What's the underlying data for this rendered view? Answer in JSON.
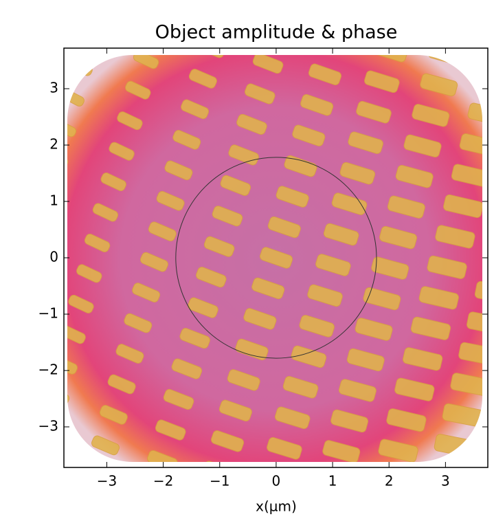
{
  "chart_data": {
    "type": "image",
    "title": "Object amplitude & phase",
    "x_label": "x(µm)",
    "xlim": [
      -3.76,
      3.75
    ],
    "ylim": [
      -3.72,
      3.72
    ],
    "xticks": [
      {
        "value": -3,
        "label": "−3"
      },
      {
        "value": -2,
        "label": "−2"
      },
      {
        "value": -1,
        "label": "−1"
      },
      0,
      1,
      2,
      3
    ],
    "yticks": [
      {
        "value": -3,
        "label": "−3"
      },
      {
        "value": -2,
        "label": "−2"
      },
      {
        "value": -1,
        "label": "−1"
      },
      0,
      1,
      2,
      3
    ],
    "circle": {
      "cx": 0,
      "cy": 0,
      "r": 1.78,
      "color": "#333333"
    }
  }
}
